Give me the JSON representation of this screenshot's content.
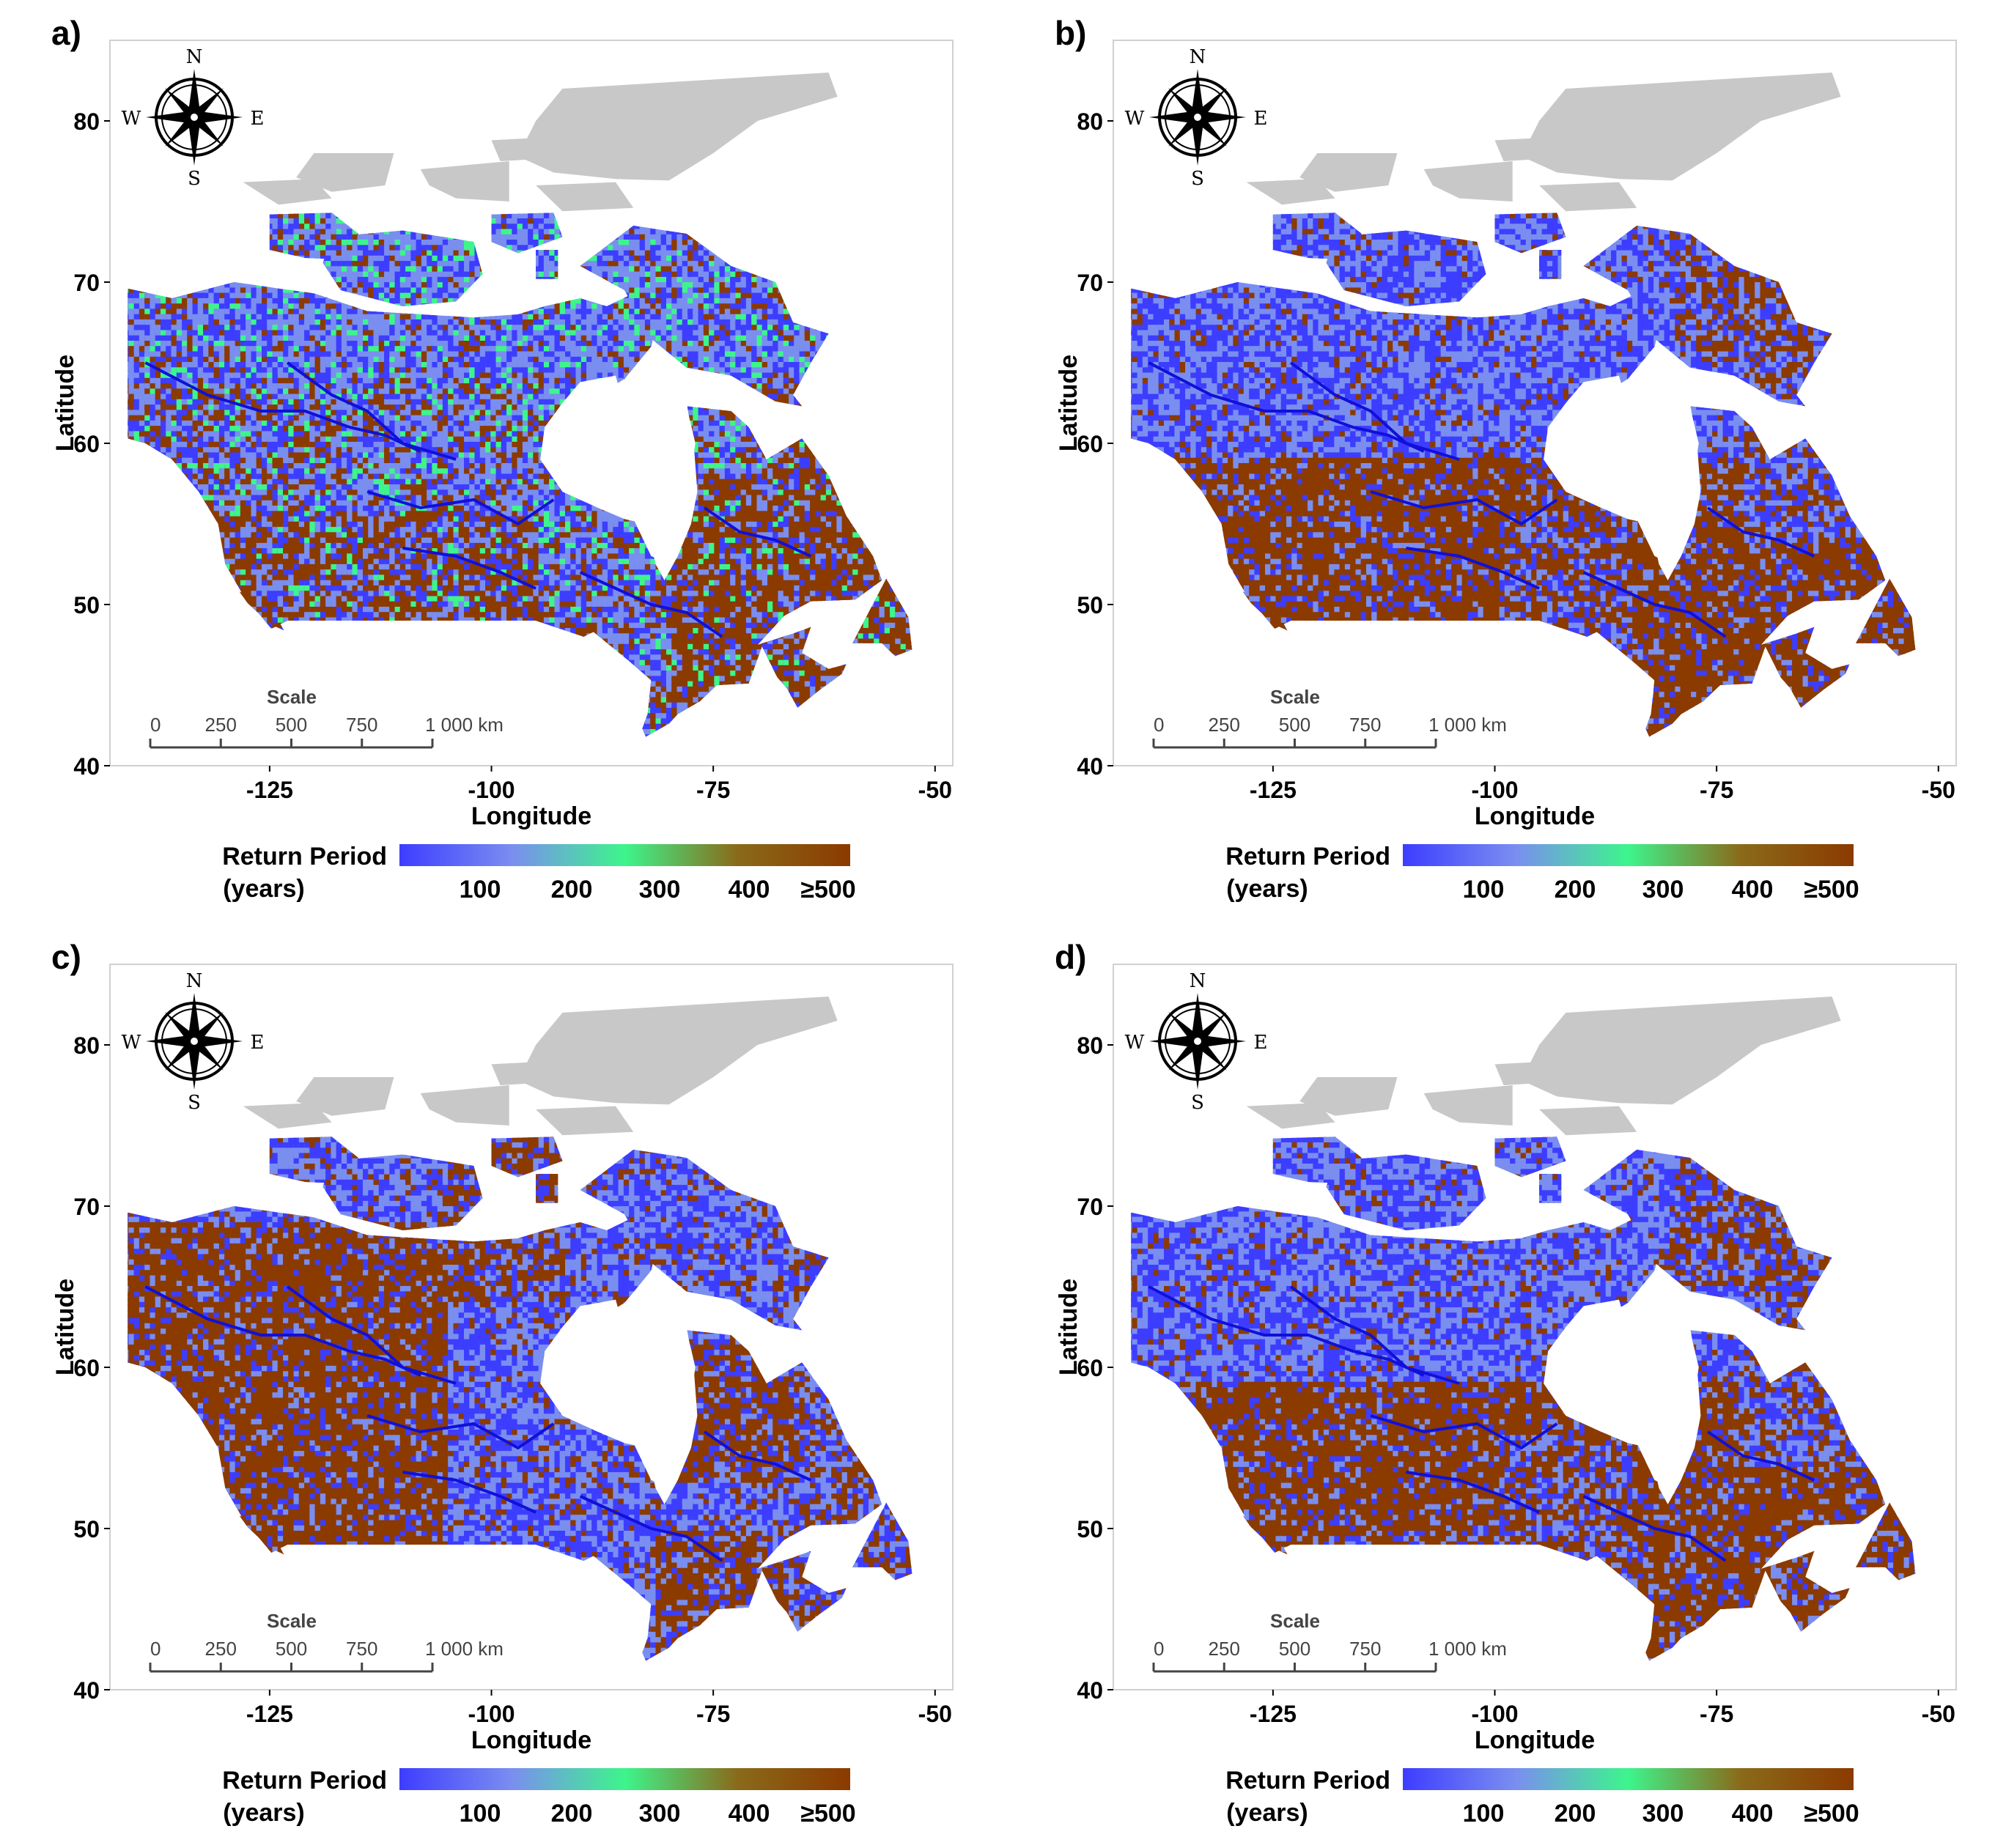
{
  "panels": [
    {
      "id": "a",
      "label": "a)",
      "dominant": "mixed"
    },
    {
      "id": "b",
      "label": "b)",
      "dominant": "brown-south"
    },
    {
      "id": "c",
      "label": "c)",
      "dominant": "brown-west"
    },
    {
      "id": "d",
      "label": "d)",
      "dominant": "brown-south"
    }
  ],
  "axes": {
    "xlabel": "Longitude",
    "ylabel": "Latitude",
    "xticks": [
      "-125",
      "-100",
      "-75",
      "-50"
    ],
    "yticks": [
      "80",
      "70",
      "60",
      "50",
      "40"
    ],
    "xlim": [
      -143,
      -48
    ],
    "ylim": [
      40,
      85
    ]
  },
  "compass": {
    "n": "N",
    "s": "S",
    "e": "E",
    "w": "W"
  },
  "scale_bar": {
    "title": "Scale",
    "ticks": [
      "0",
      "250",
      "500",
      "750",
      "1 000 km"
    ]
  },
  "legend": {
    "title_line1": "Return Period",
    "title_line2": "(years)",
    "ticks": [
      "100",
      "200",
      "300",
      "400",
      "≥500"
    ],
    "colors": [
      "#3d3dff",
      "#7a8ef0",
      "#3df58c",
      "#8a6a1a",
      "#8b3a00"
    ]
  },
  "colors": {
    "low": "#3d3dff",
    "mid": "#3df58c",
    "high": "#8b3a00",
    "arctic_gray": "#c8c8c8",
    "frame": "#d0d0d0"
  }
}
